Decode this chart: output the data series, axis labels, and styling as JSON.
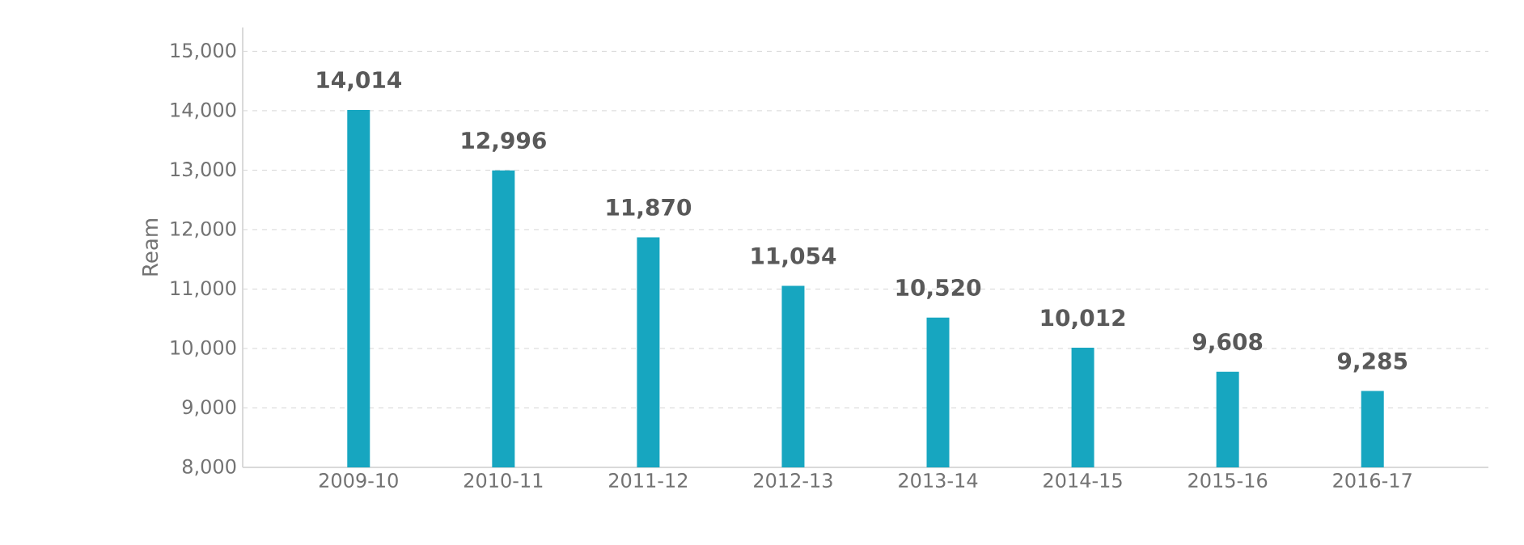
{
  "chart_data": {
    "type": "bar",
    "ylabel": "Ream",
    "categories": [
      "2009-10",
      "2010-11",
      "2011-12",
      "2012-13",
      "2013-14",
      "2014-15",
      "2015-16",
      "2016-17"
    ],
    "values": [
      14014,
      12996,
      11870,
      11054,
      10520,
      10012,
      9608,
      9285
    ],
    "color": "#17a6c0",
    "value_labels": [
      "14,014",
      "12,996",
      "11,870",
      "11,054",
      "10,520",
      "10,012",
      "9,608",
      "9,285"
    ],
    "ylim": [
      8000,
      15400
    ],
    "yticks": [
      {
        "value": 8000,
        "label": "8,000"
      },
      {
        "value": 9000,
        "label": "9,000"
      },
      {
        "value": 10000,
        "label": "10,000"
      },
      {
        "value": 11000,
        "label": "11,000"
      },
      {
        "value": 12000,
        "label": "12,000"
      },
      {
        "value": 13000,
        "label": "13,000"
      },
      {
        "value": 14000,
        "label": "14,000"
      },
      {
        "value": 15000,
        "label": "15,000"
      }
    ],
    "grid": "y"
  }
}
